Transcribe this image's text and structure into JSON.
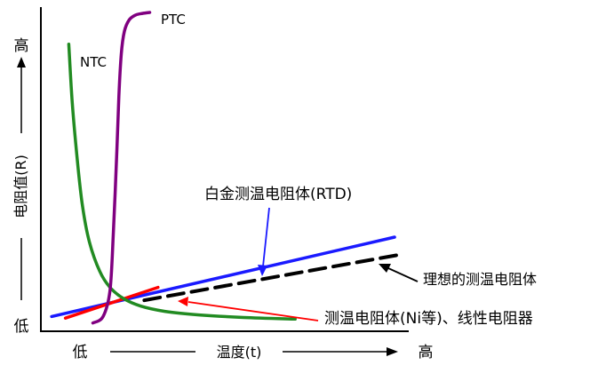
{
  "chart_data": {
    "type": "line",
    "xlim": [
      0,
      100
    ],
    "ylim": [
      0,
      100
    ],
    "axes": {
      "y_high": "高",
      "y_label": "电阻值(R)",
      "y_low": "低",
      "x_low": "低",
      "x_label": "温度(t)",
      "x_high": "高"
    },
    "series": [
      {
        "name": "NTC",
        "color": "#228b22",
        "dash": false,
        "x": [
          4,
          5,
          6.5,
          8,
          10,
          13,
          16,
          20,
          25,
          32,
          42,
          55,
          70
        ],
        "y": [
          88,
          70,
          52,
          38,
          27,
          18,
          13,
          9.5,
          7.2,
          5.6,
          4.5,
          3.7,
          3.2
        ]
      },
      {
        "name": "PTC",
        "color": "#800080",
        "dash": false,
        "x": [
          11,
          14,
          16,
          17,
          18,
          18.6,
          19.3,
          20.2,
          21.6,
          23.5,
          25.5,
          27.6
        ],
        "y": [
          2,
          4,
          12,
          30,
          55,
          72,
          85,
          92,
          95.5,
          97,
          97.5,
          97.8
        ]
      },
      {
        "name": "白金测温电阻体(RTD)",
        "color": "#1a1aff",
        "dash": false,
        "x": [
          -1,
          99
        ],
        "y": [
          4,
          28.5
        ]
      },
      {
        "name": "理想的测温电阻体",
        "color": "#000000",
        "dash": true,
        "x": [
          26,
          100
        ],
        "y": [
          9,
          23
        ]
      },
      {
        "name": "测温电阻体(Ni等)、线性电阻器",
        "color": "#ff0000",
        "dash": false,
        "x": [
          3,
          30
        ],
        "y": [
          3.5,
          13
        ]
      }
    ],
    "annotations": [
      {
        "text": "NTC",
        "color": "#228b22"
      },
      {
        "text": "PTC",
        "color": "#800080"
      },
      {
        "text": "白金测温电阻体(RTD)",
        "color": "#1a1aff"
      },
      {
        "text": "理想的测温电阻体",
        "color": "#000000"
      },
      {
        "text": "测温电阻体(Ni等)、线性电阻器",
        "color": "#ff0000"
      }
    ]
  }
}
